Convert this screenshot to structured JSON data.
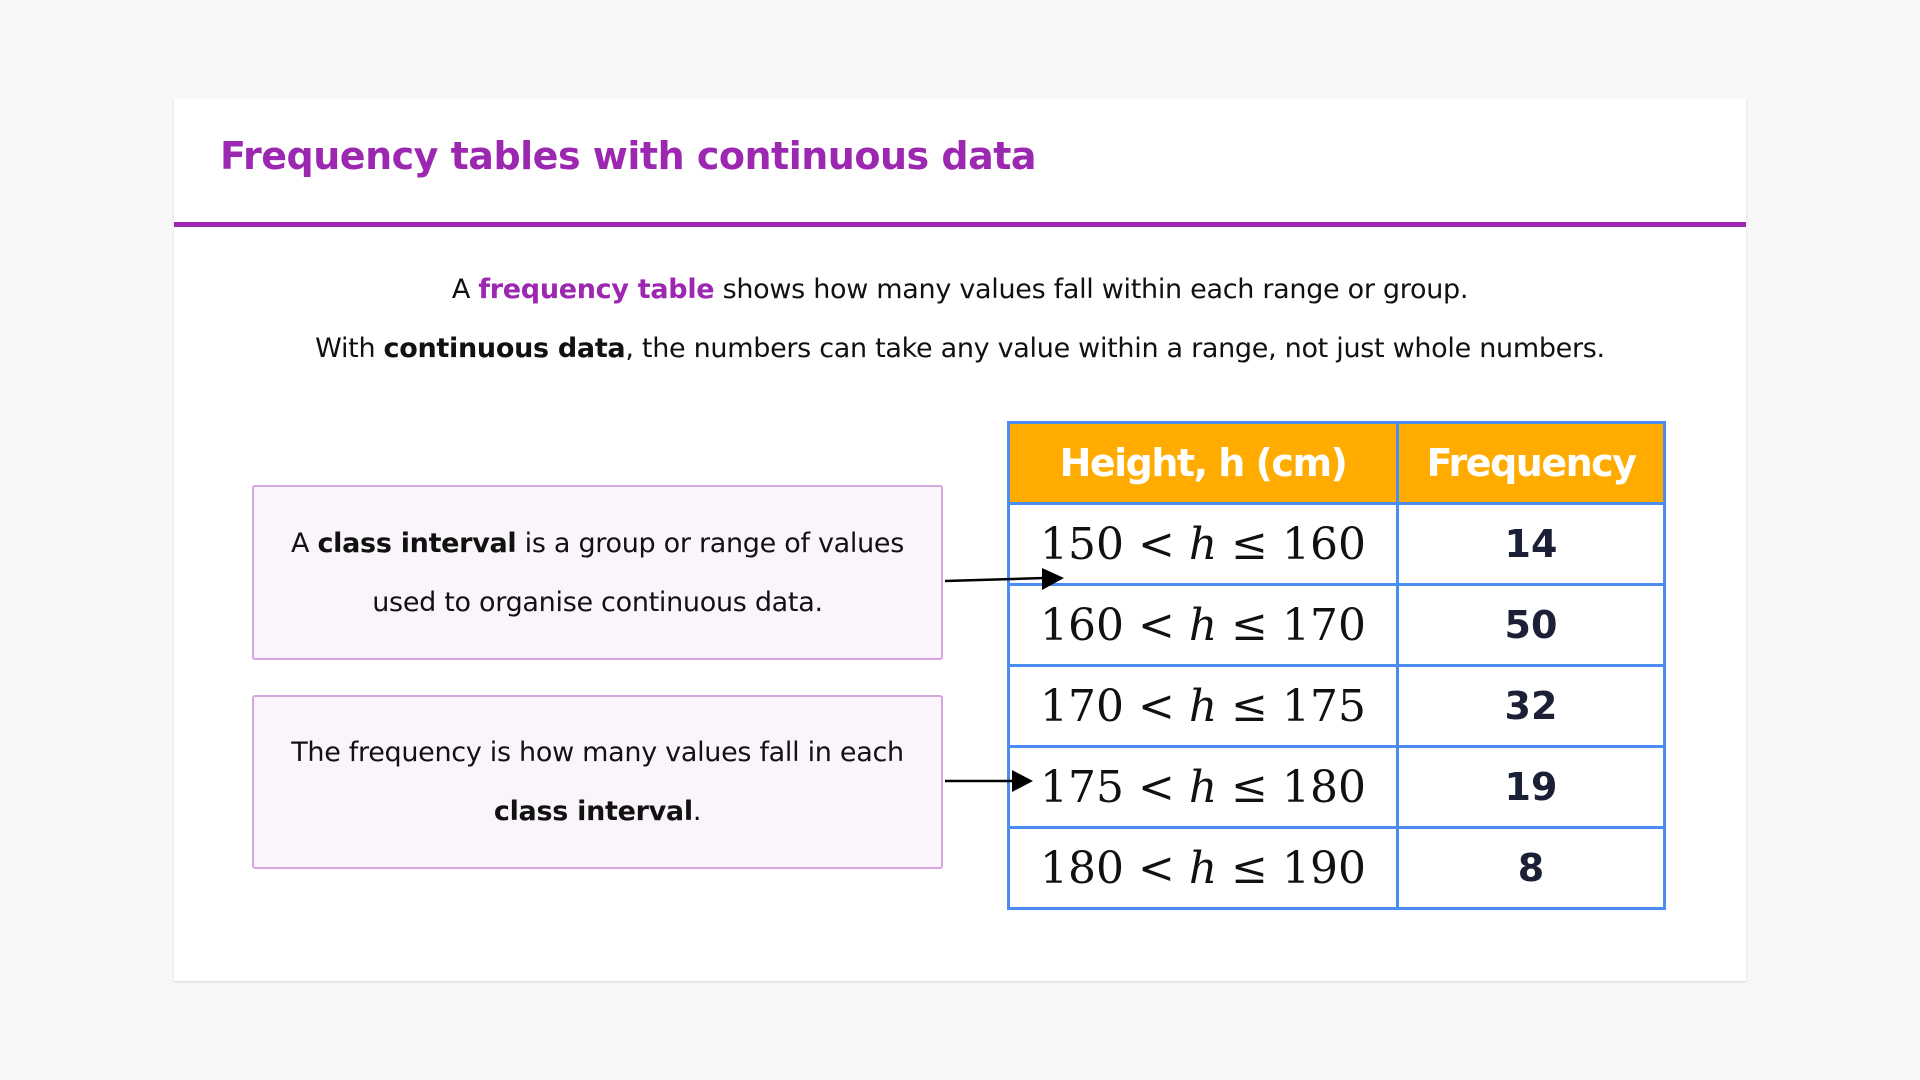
{
  "title": "Frequency tables with continuous data",
  "intro": {
    "line1_pre": "A ",
    "line1_highlight": "frequency table",
    "line1_post": " shows how many values fall within each range or group.",
    "line2_pre": "With ",
    "line2_bold": "continuous data",
    "line2_post": ", the numbers can take any value within a range, not just whole numbers."
  },
  "callouts": [
    {
      "pre": "A ",
      "bold": "class interval",
      "post": " is a group or range of values used to organise continuous data."
    },
    {
      "pre": "The frequency is how many values fall in each ",
      "bold": "class interval",
      "post": "."
    }
  ],
  "table": {
    "headers": [
      "Height, h (cm)",
      "Frequency"
    ],
    "rows": [
      {
        "low": "150",
        "var": "h",
        "high": "160",
        "frequency": "14"
      },
      {
        "low": "160",
        "var": "h",
        "high": "170",
        "frequency": "50"
      },
      {
        "low": "170",
        "var": "h",
        "high": "175",
        "frequency": "32"
      },
      {
        "low": "175",
        "var": "h",
        "high": "180",
        "frequency": "19"
      },
      {
        "low": "180",
        "var": "h",
        "high": "190",
        "frequency": "8"
      }
    ]
  },
  "colors": {
    "accent": "#9c27b0",
    "header": "#ffab00",
    "table_border": "#4a8cf0",
    "callout_border": "#d7a5df"
  }
}
